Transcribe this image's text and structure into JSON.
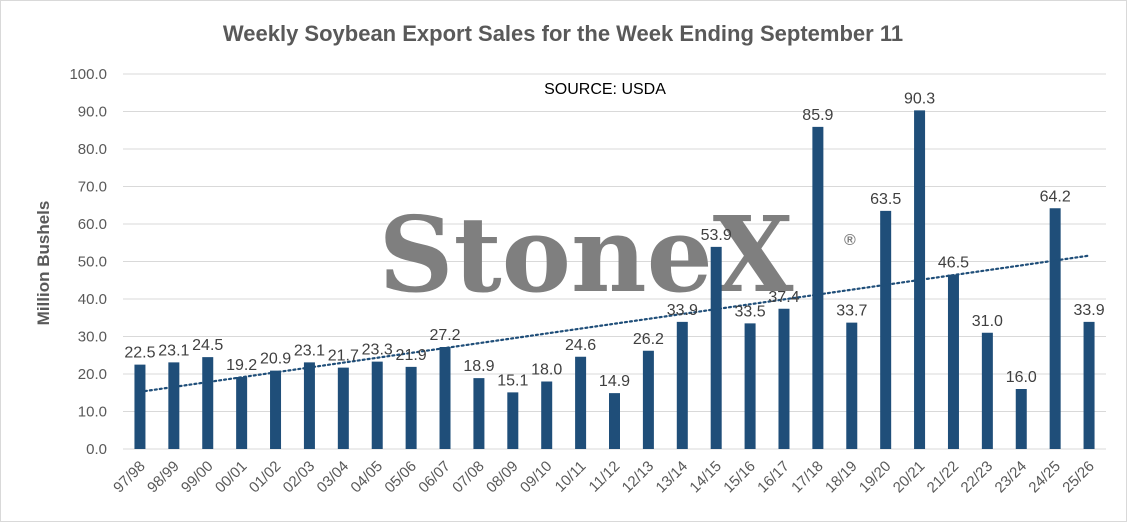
{
  "chart_data": {
    "type": "bar",
    "title": "Weekly Soybean Export Sales for the Week Ending September 11",
    "ylabel": "Million Bushels",
    "xlabel": "",
    "annotation": "SOURCE: USDA",
    "watermark": "StoneX",
    "watermark_mark": "®",
    "ylim": [
      0,
      100
    ],
    "yticks": [
      "0.0",
      "10.0",
      "20.0",
      "30.0",
      "40.0",
      "50.0",
      "60.0",
      "70.0",
      "80.0",
      "90.0",
      "100.0"
    ],
    "grid": true,
    "legend": "none",
    "trendline": {
      "type": "linear",
      "style": "dotted"
    },
    "colors": {
      "bar": "#1f4e79",
      "trend": "#1f4e79",
      "grid": "#d9d9d9"
    },
    "categories": [
      "97/98",
      "98/99",
      "99/00",
      "00/01",
      "01/02",
      "02/03",
      "03/04",
      "04/05",
      "05/06",
      "06/07",
      "07/08",
      "08/09",
      "09/10",
      "10/11",
      "11/12",
      "12/13",
      "13/14",
      "14/15",
      "15/16",
      "16/17",
      "17/18",
      "18/19",
      "19/20",
      "20/21",
      "21/22",
      "22/23",
      "23/24",
      "24/25",
      "25/26"
    ],
    "values": [
      22.5,
      23.1,
      24.5,
      19.2,
      20.9,
      23.1,
      21.7,
      23.3,
      21.9,
      27.2,
      18.9,
      15.1,
      18.0,
      24.6,
      14.9,
      26.2,
      33.9,
      53.9,
      33.5,
      37.4,
      85.9,
      33.7,
      63.5,
      90.3,
      46.5,
      31.0,
      16.0,
      64.2,
      33.9
    ],
    "labels": [
      "22.5",
      "23.1",
      "24.5",
      "19.2",
      "20.9",
      "23.1",
      "21.7",
      "23.3",
      "21.9",
      "27.2",
      "18.9",
      "15.1",
      "18.0",
      "24.6",
      "14.9",
      "26.2",
      "33.9",
      "53.9",
      "33.5",
      "37.4",
      "85.9",
      "33.7",
      "63.5",
      "90.3",
      "46.5",
      "31.0",
      "16.0",
      "64.2",
      "33.9"
    ]
  }
}
